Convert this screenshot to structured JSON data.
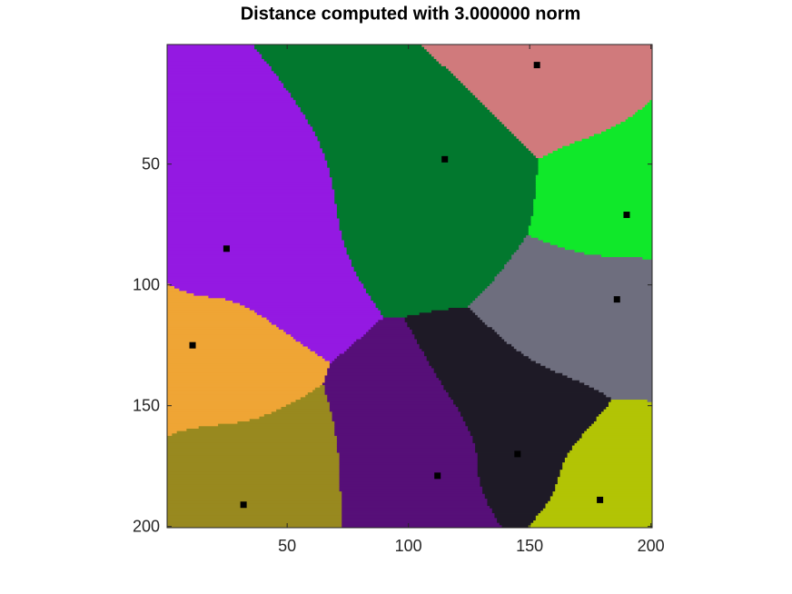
{
  "chart_data": {
    "type": "voronoi",
    "title": "Distance computed with 3.000000 norm",
    "norm": 3,
    "xlim": [
      0.5,
      200.5
    ],
    "ylim": [
      0.5,
      200.5
    ],
    "y_reversed": true,
    "xticks": [
      50,
      100,
      150,
      200
    ],
    "yticks": [
      50,
      100,
      150,
      200
    ],
    "marker_color": "#000000",
    "points": [
      {
        "x": 153,
        "y": 9,
        "color": "#d07a7c"
      },
      {
        "x": 115,
        "y": 48,
        "color": "#02782e"
      },
      {
        "x": 190,
        "y": 71,
        "color": "#10e82a"
      },
      {
        "x": 25,
        "y": 85,
        "color": "#9419e2"
      },
      {
        "x": 186,
        "y": 106,
        "color": "#6e6e7e"
      },
      {
        "x": 11,
        "y": 125,
        "color": "#efa535"
      },
      {
        "x": 145,
        "y": 170,
        "color": "#1e1a26"
      },
      {
        "x": 112,
        "y": 179,
        "color": "#560f78"
      },
      {
        "x": 32,
        "y": 191,
        "color": "#98891f"
      },
      {
        "x": 179,
        "y": 189,
        "color": "#b2c405"
      }
    ]
  }
}
